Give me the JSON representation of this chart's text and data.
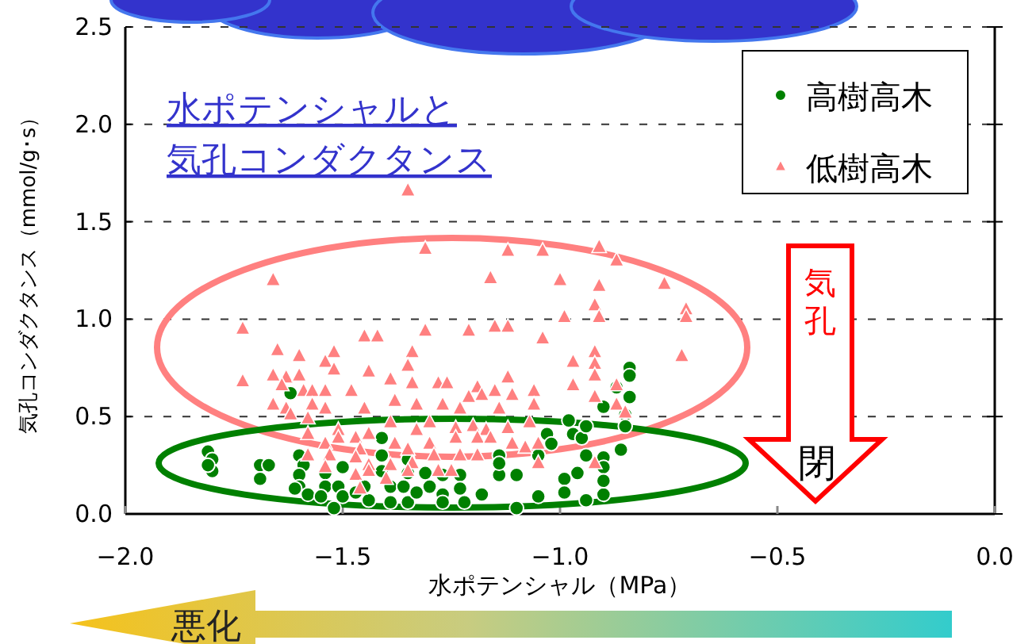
{
  "chart_data": {
    "type": "scatter",
    "title": "水ポテンシャルと",
    "subtitle": "気孔コンダクタンス",
    "xlabel": "水ポテンシャル（MPa）",
    "ylabel": "気孔コンダクタンス（mmol/g･s）",
    "xlim": [
      -2,
      0
    ],
    "ylim": [
      0,
      2.5
    ],
    "xticks": [
      {
        "value": -2,
        "label": "−2.0"
      },
      {
        "value": -1.5,
        "label": "−1.5"
      },
      {
        "value": -1,
        "label": "−1.0"
      },
      {
        "value": -0.5,
        "label": "−0.5"
      },
      {
        "value": 0,
        "label": "0.0"
      }
    ],
    "yticks": [
      {
        "value": 0,
        "label": "0.0"
      },
      {
        "value": 0.5,
        "label": "0.5"
      },
      {
        "value": 1,
        "label": "1.0"
      },
      {
        "value": 1.5,
        "label": "1.5"
      },
      {
        "value": 2,
        "label": "2.0"
      },
      {
        "value": 2.5,
        "label": "2.5"
      }
    ],
    "grid": "y",
    "legend": "top right",
    "annotations": [
      "気孔",
      "閉",
      "悪化"
    ],
    "series": [
      {
        "name": "高樹高木",
        "color": "#008000",
        "type": "scatter",
        "marker": "circle",
        "x": [
          -0.84,
          -0.84,
          -0.84,
          -0.87,
          -0.9,
          -0.85,
          -0.85,
          -0.86,
          -1.62,
          -1.81,
          -1.8,
          -1.8,
          -1.81,
          -1.69,
          -1.67,
          -1.69,
          -1.6,
          -1.59,
          -1.6,
          -1.6,
          -1.61,
          -1.58,
          -1.54,
          -1.54,
          -1.55,
          -1.5,
          -1.51,
          -1.5,
          -1.52,
          -1.47,
          -1.45,
          -1.44,
          -1.41,
          -1.41,
          -1.41,
          -1.39,
          -1.39,
          -1.35,
          -1.35,
          -1.36,
          -1.35,
          -1.33,
          -1.31,
          -1.3,
          -1.27,
          -1.27,
          -1.27,
          -1.23,
          -1.23,
          -1.22,
          -1.18,
          -1.14,
          -1.14,
          -1.14,
          -1.1,
          -1.1,
          -1.05,
          -1.05,
          -1.03,
          -1.02,
          -0.99,
          -0.98,
          -0.97,
          -0.95,
          -0.94,
          -0.96,
          -0.99,
          -0.94,
          -0.9,
          -0.9,
          -0.9,
          -0.9,
          -0.94
        ],
        "values": [
          0.75,
          0.71,
          0.6,
          0.65,
          0.55,
          0.51,
          0.45,
          0.33,
          0.62,
          0.32,
          0.28,
          0.22,
          0.25,
          0.25,
          0.25,
          0.18,
          0.3,
          0.25,
          0.2,
          0.14,
          0.13,
          0.1,
          0.21,
          0.14,
          0.09,
          0.24,
          0.14,
          0.09,
          0.03,
          0.11,
          0.14,
          0.07,
          0.39,
          0.3,
          0.22,
          0.14,
          0.06,
          0.28,
          0.21,
          0.14,
          0.06,
          0.11,
          0.21,
          0.14,
          0.2,
          0.1,
          0.06,
          0.2,
          0.13,
          0.06,
          0.1,
          0.2,
          0.3,
          0.26,
          0.2,
          0.03,
          0.09,
          0.3,
          0.41,
          0.36,
          0.18,
          0.48,
          0.41,
          0.39,
          0.3,
          0.21,
          0.11,
          0.07,
          0.29,
          0.24,
          0.1,
          0.17,
          0.45
        ]
      },
      {
        "name": "低樹高木",
        "color": "#ff8080",
        "type": "scatter",
        "marker": "triangle",
        "x": [
          -1.35,
          -1.66,
          -1.31,
          -1.12,
          -1.04,
          -0.91,
          -0.87,
          -1.16,
          -1.0,
          -0.91,
          -0.76,
          -0.92,
          -0.71,
          -0.91,
          -0.99,
          -0.71,
          -1.73,
          -1.45,
          -1.42,
          -1.31,
          -1.21,
          -1.15,
          -1.12,
          -1.04,
          -1.65,
          -1.52,
          -1.6,
          -1.54,
          -1.52,
          -1.34,
          -1.35,
          -1.44,
          -0.92,
          -0.92,
          -0.97,
          -0.72,
          -1.73,
          -1.66,
          -1.63,
          -1.6,
          -1.64,
          -1.59,
          -1.57,
          -1.54,
          -1.48,
          -1.39,
          -1.34,
          -1.28,
          -1.26,
          -1.19,
          -1.12,
          -1.15,
          -1.18,
          -1.11,
          -1.06,
          -0.97,
          -0.92,
          -0.87,
          -1.66,
          -1.63,
          -1.57,
          -1.54,
          -1.45,
          -1.38,
          -1.33,
          -1.27,
          -1.23,
          -1.21,
          -1.14,
          -1.06,
          -0.92,
          -0.87,
          -0.85,
          -1.62,
          -1.58,
          -1.51,
          -1.47,
          -1.44,
          -1.39,
          -1.33,
          -1.3,
          -1.24,
          -1.2,
          -1.17,
          -1.12,
          -1.07,
          -1.58,
          -1.54,
          -1.51,
          -1.46,
          -1.38,
          -1.35,
          -1.3,
          -1.24,
          -1.19,
          -1.16,
          -1.11,
          -1.08,
          -1.05,
          -1.58,
          -1.53,
          -1.47,
          -1.44,
          -1.39,
          -1.34,
          -1.29,
          -1.23,
          -1.19,
          -1.05,
          -1.54,
          -1.47,
          -1.44,
          -1.4,
          -1.35,
          -1.28,
          -1.25,
          -0.92,
          -1.46
        ],
        "values": [
          1.66,
          1.2,
          1.36,
          1.35,
          1.35,
          1.37,
          1.3,
          1.21,
          1.2,
          1.17,
          1.18,
          1.07,
          1.05,
          1.01,
          1.01,
          1.01,
          0.95,
          0.91,
          0.91,
          0.94,
          0.94,
          0.96,
          0.96,
          0.9,
          0.84,
          0.83,
          0.81,
          0.78,
          0.74,
          0.83,
          0.76,
          0.73,
          0.83,
          0.77,
          0.78,
          0.81,
          0.68,
          0.71,
          0.7,
          0.71,
          0.66,
          0.63,
          0.63,
          0.63,
          0.63,
          0.69,
          0.67,
          0.67,
          0.67,
          0.65,
          0.7,
          0.63,
          0.61,
          0.61,
          0.63,
          0.66,
          0.71,
          0.66,
          0.56,
          0.54,
          0.56,
          0.54,
          0.54,
          0.58,
          0.56,
          0.56,
          0.54,
          0.6,
          0.54,
          0.56,
          0.6,
          0.56,
          0.52,
          0.51,
          0.49,
          0.43,
          0.39,
          0.41,
          0.47,
          0.43,
          0.47,
          0.44,
          0.45,
          0.43,
          0.44,
          0.47,
          0.41,
          0.36,
          0.39,
          0.33,
          0.36,
          0.33,
          0.36,
          0.39,
          0.39,
          0.39,
          0.36,
          0.34,
          0.36,
          0.3,
          0.3,
          0.29,
          0.25,
          0.25,
          0.26,
          0.3,
          0.3,
          0.3,
          0.26,
          0.24,
          0.2,
          0.22,
          0.18,
          0.22,
          0.22,
          0.22,
          0.26,
          0.13
        ]
      }
    ]
  }
}
